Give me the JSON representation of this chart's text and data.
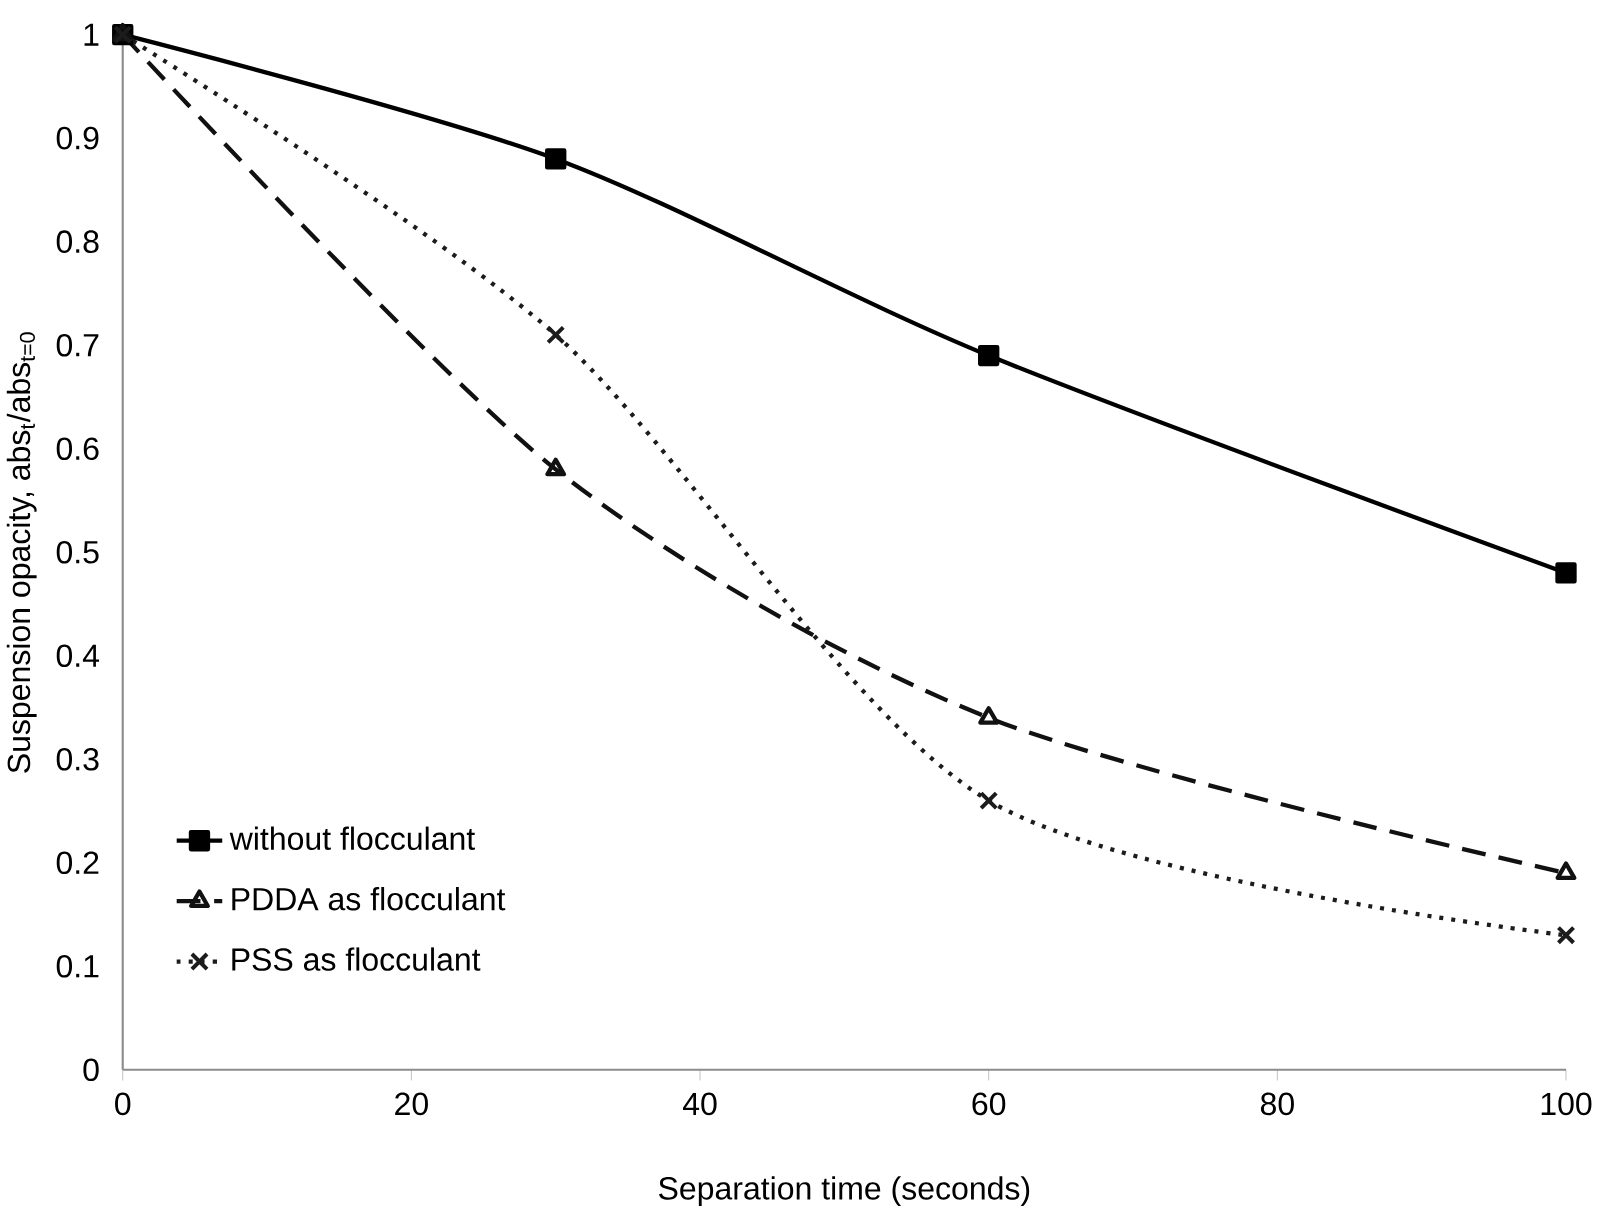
{
  "chart_data": {
    "type": "line",
    "xlabel": "Separation time (seconds)",
    "ylabel": "Suspension opacity,  abs$_{t}$/abs$_{t=0}$",
    "x": [
      0,
      30,
      60,
      100
    ],
    "series": [
      {
        "name": "without flocculant",
        "color": "#000000",
        "values": [
          1,
          0.88,
          0.69,
          0.48
        ],
        "marker": "square",
        "line_style": "solid"
      },
      {
        "name": "PDDA as flocculant",
        "color": "#111111",
        "values": [
          1,
          0.58,
          0.34,
          0.19
        ],
        "marker": "triangle",
        "line_style": "dashed"
      },
      {
        "name": "PSS as flocculant",
        "color": "#1c1c1c",
        "values": [
          1,
          0.71,
          0.26,
          0.13
        ],
        "marker": "cross",
        "line_style": "dotted"
      }
    ],
    "xlim": [
      0,
      100
    ],
    "xticks": [
      0,
      20,
      40,
      60,
      80,
      100
    ],
    "ylim": [
      0,
      1
    ],
    "yticks": [
      0,
      0.1,
      0.2,
      0.3,
      0.4,
      0.5,
      0.6,
      0.7,
      0.8,
      0.9,
      1
    ],
    "grid": false,
    "legend": "left"
  }
}
